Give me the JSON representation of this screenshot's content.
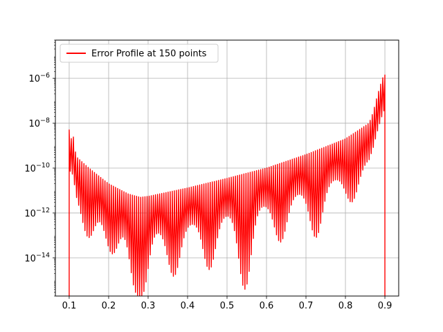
{
  "chart_data": {
    "type": "line",
    "title": "",
    "xlabel": "",
    "ylabel": "",
    "xscale": "linear",
    "yscale": "log",
    "xlim": [
      0.065,
      0.935
    ],
    "ylim": [
      2e-16,
      5e-05
    ],
    "grid": true,
    "legend_position": "top-left",
    "x_ticks": [
      {
        "value": 0.1,
        "label": "0.1"
      },
      {
        "value": 0.2,
        "label": "0.2"
      },
      {
        "value": 0.3,
        "label": "0.3"
      },
      {
        "value": 0.4,
        "label": "0.4"
      },
      {
        "value": 0.5,
        "label": "0.5"
      },
      {
        "value": 0.6,
        "label": "0.6"
      },
      {
        "value": 0.7,
        "label": "0.7"
      },
      {
        "value": 0.8,
        "label": "0.8"
      },
      {
        "value": 0.9,
        "label": "0.9"
      }
    ],
    "y_ticks": [
      {
        "value": 1e-14,
        "base": "10",
        "exp": "−14"
      },
      {
        "value": 1e-12,
        "base": "10",
        "exp": "−12"
      },
      {
        "value": 1e-10,
        "base": "10",
        "exp": "−10"
      },
      {
        "value": 1e-08,
        "base": "10",
        "exp": "−8"
      },
      {
        "value": 1e-06,
        "base": "10",
        "exp": "−6"
      }
    ],
    "series": [
      {
        "name": "Error Profile at 150 points",
        "color": "#ff0000",
        "envelope_upper": [
          {
            "x": 0.1,
            "y": 5e-09
          },
          {
            "x": 0.105,
            "y": 2e-09
          },
          {
            "x": 0.11,
            "y": 3e-09
          },
          {
            "x": 0.115,
            "y": 6e-10
          },
          {
            "x": 0.12,
            "y": 3e-10
          },
          {
            "x": 0.15,
            "y": 1e-10
          },
          {
            "x": 0.2,
            "y": 2e-11
          },
          {
            "x": 0.25,
            "y": 7e-12
          },
          {
            "x": 0.28,
            "y": 5e-12
          },
          {
            "x": 0.3,
            "y": 5.5e-12
          },
          {
            "x": 0.4,
            "y": 1.3e-11
          },
          {
            "x": 0.5,
            "y": 3.5e-11
          },
          {
            "x": 0.6,
            "y": 1e-10
          },
          {
            "x": 0.7,
            "y": 4e-10
          },
          {
            "x": 0.8,
            "y": 2e-09
          },
          {
            "x": 0.86,
            "y": 1e-08
          },
          {
            "x": 0.87,
            "y": 3e-08
          },
          {
            "x": 0.88,
            "y": 1.5e-07
          },
          {
            "x": 0.89,
            "y": 6e-07
          },
          {
            "x": 0.897,
            "y": 1.4e-06
          }
        ],
        "trough_dips": [
          {
            "x": 0.15,
            "y": 8e-14
          },
          {
            "x": 0.21,
            "y": 1.5e-14
          },
          {
            "x": 0.275,
            "y": 5e-16
          },
          {
            "x": 0.28,
            "y": 2e-16
          },
          {
            "x": 0.365,
            "y": 1.5e-15
          },
          {
            "x": 0.455,
            "y": 3e-15
          },
          {
            "x": 0.545,
            "y": 4e-16
          },
          {
            "x": 0.635,
            "y": 5e-14
          },
          {
            "x": 0.725,
            "y": 8e-14
          },
          {
            "x": 0.815,
            "y": 3e-12
          }
        ],
        "endpoint_drops_x": [
          0.1,
          0.9
        ],
        "oscillation_count": 150
      }
    ]
  }
}
